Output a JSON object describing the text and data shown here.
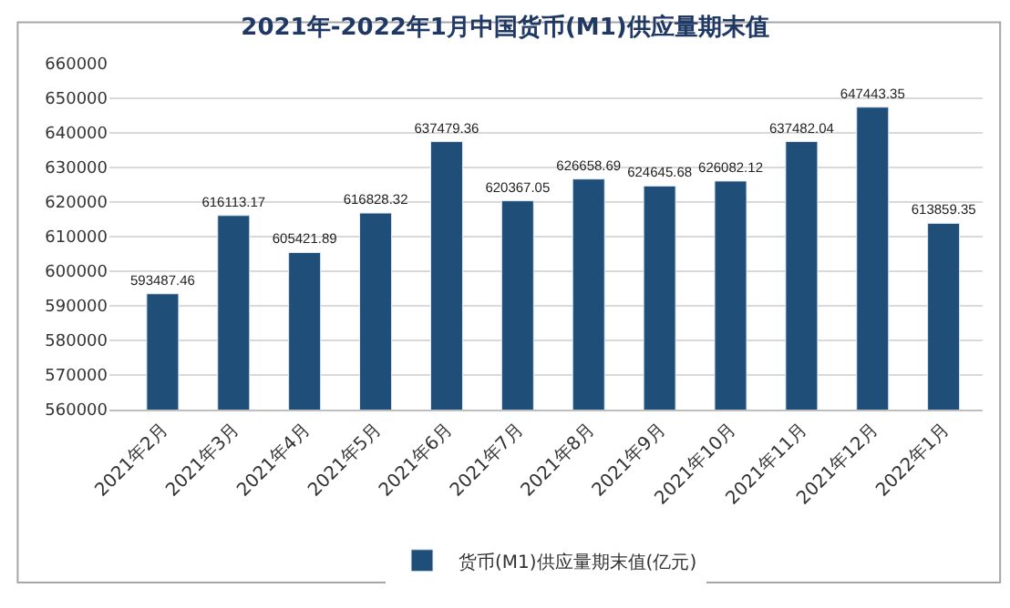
{
  "chart_data": {
    "type": "bar",
    "title": "2021年-2022年1月中国货币(M1)供应量期末值",
    "categories": [
      "2021年2月",
      "2021年3月",
      "2021年4月",
      "2021年5月",
      "2021年6月",
      "2021年7月",
      "2021年8月",
      "2021年9月",
      "2021年10月",
      "2021年11月",
      "2021年12月",
      "2022年1月"
    ],
    "series": [
      {
        "name": "货币(M1)供应量期末值(亿元)",
        "color": "#1f4e79",
        "values": [
          593487.46,
          616113.17,
          605421.89,
          616828.32,
          637479.36,
          620367.05,
          626658.69,
          624645.68,
          626082.12,
          637482.04,
          647443.35,
          613859.35
        ]
      }
    ],
    "ylim": [
      560000,
      660000
    ],
    "yticks": [
      560000,
      570000,
      580000,
      590000,
      600000,
      610000,
      620000,
      630000,
      640000,
      650000,
      660000
    ],
    "grid": "y",
    "legend": "bottom",
    "data_labels": true
  }
}
